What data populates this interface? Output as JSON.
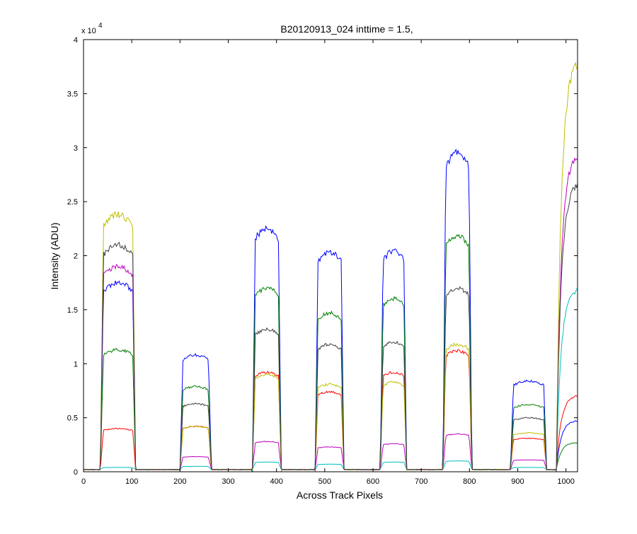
{
  "chart_data": {
    "type": "line",
    "title": "B20120913_024 inttime = 1.5,",
    "xlabel": "Across Track Pixels",
    "ylabel": "Intensity (ADU)",
    "xlim": [
      0,
      1024
    ],
    "ylim": [
      0,
      40000
    ],
    "y_scale_base": "x 10",
    "y_scale_exponent": "4",
    "x_ticks": [
      0,
      100,
      200,
      300,
      400,
      500,
      600,
      700,
      800,
      900,
      1000
    ],
    "x_tick_labels": [
      "0",
      "100",
      "200",
      "300",
      "400",
      "500",
      "600",
      "700",
      "800",
      "900",
      "1000"
    ],
    "y_ticks": [
      0,
      5000,
      10000,
      15000,
      20000,
      25000,
      30000,
      35000,
      40000
    ],
    "y_tick_labels": [
      "0",
      "0.5",
      "1",
      "1.5",
      "2",
      "2.5",
      "3",
      "3.5",
      "4"
    ],
    "grid": false,
    "legend": "none",
    "plateaus": [
      {
        "x_start": 35,
        "x_end": 108
      },
      {
        "x_start": 200,
        "x_end": 265
      },
      {
        "x_start": 350,
        "x_end": 410
      },
      {
        "x_start": 480,
        "x_end": 540
      },
      {
        "x_start": 615,
        "x_end": 670
      },
      {
        "x_start": 745,
        "x_end": 805
      },
      {
        "x_start": 885,
        "x_end": 960
      },
      {
        "x_start": 980,
        "x_end": 1024
      }
    ],
    "series": [
      {
        "color": "#0000ff",
        "baseline": 200,
        "peak_values": [
          17500,
          10800,
          22500,
          20300,
          20400,
          29500,
          8400,
          4700
        ]
      },
      {
        "color": "#008000",
        "baseline": 200,
        "peak_values": [
          11300,
          7900,
          17000,
          14700,
          16000,
          21800,
          6200,
          2700
        ]
      },
      {
        "color": "#ff0000",
        "baseline": 200,
        "peak_values": [
          4000,
          4200,
          9200,
          7400,
          9200,
          11200,
          3100,
          7000
        ]
      },
      {
        "color": "#00bfbf",
        "baseline": 200,
        "peak_values": [
          400,
          500,
          900,
          700,
          900,
          1000,
          400,
          16800
        ]
      },
      {
        "color": "#bf00bf",
        "baseline": 200,
        "peak_values": [
          19000,
          1400,
          2800,
          2300,
          2600,
          3500,
          1100,
          29200
        ]
      },
      {
        "color": "#bfbf00",
        "baseline": 200,
        "peak_values": [
          23800,
          4200,
          9000,
          8100,
          8300,
          11800,
          3600,
          37600
        ]
      },
      {
        "color": "#404040",
        "baseline": 200,
        "peak_values": [
          21000,
          6300,
          13200,
          11800,
          12000,
          17000,
          5000,
          26500
        ]
      }
    ]
  }
}
